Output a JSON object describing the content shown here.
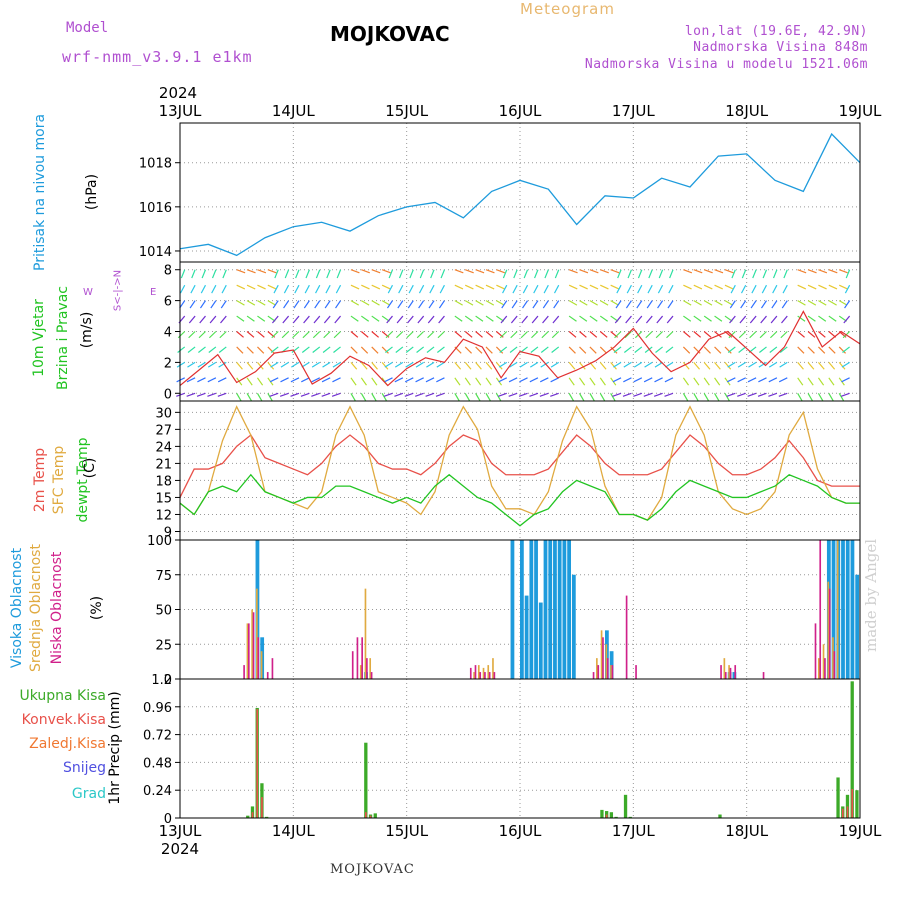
{
  "header": {
    "meteogram_label": "Meteogram",
    "title": "MOJKOVAC",
    "model_label": "Model",
    "model_name": "wrf-nmm_v3.9.1  e1km",
    "lonlat": "lon,lat (19.6E, 42.9N)",
    "altitude": "Nadmorska Visina 848m",
    "model_altitude": "Nadmorska Visina u modelu 1521.06m",
    "bottom_label": "MOJKOVAC",
    "watermark": "made by Angel"
  },
  "time_axis": {
    "year": "2024",
    "days": [
      "13JUL",
      "14JUL",
      "15JUL",
      "16JUL",
      "17JUL",
      "18JUL",
      "19JUL"
    ]
  },
  "panel_labels": {
    "pressure": {
      "name": "Pritisak na nivou mora",
      "unit": "(hPa)"
    },
    "wind": {
      "name1": "10m Vjetar",
      "name2": "Brzina i Pravac",
      "unit": "(m/s)",
      "compass_ns": "S<-|->N",
      "compass_w": "W",
      "compass_e": "E"
    },
    "temp": {
      "name1": "2m Temp",
      "name2": "SFC Temp",
      "name3": "dewpt Temp",
      "unit": "(C)"
    },
    "cloud": {
      "high": "Visoka Oblacnost",
      "mid": "Srednja Oblacnost",
      "low": "Niska Oblacnost",
      "unit": "(%)"
    },
    "precip": {
      "total": "Ukupna Kisa",
      "conv": "Konvek.Kisa",
      "frozen": "Zaledj.Kisa",
      "snow": "Snijeg",
      "graupel": "Grad",
      "unit": "1hr Precip (mm)"
    }
  },
  "colors": {
    "pressure": "#1e9bdc",
    "temp2m": "#e8514a",
    "sfc_temp": "#e0aa40",
    "dewpoint": "#22c422",
    "cloud_high": "#1e9bdc",
    "cloud_mid": "#e0aa40",
    "cloud_low": "#d0208a",
    "precip_total": "#3caa28",
    "precip_conv": "#e8514a",
    "precip_frozen": "#f07832",
    "precip_snow": "#5050e0",
    "precip_graupel": "#2cc8c8"
  },
  "chart_data": [
    {
      "type": "line",
      "panel": "pressure",
      "ylabel": "(hPa)",
      "ylim": [
        1013.5,
        1019.8
      ],
      "yticks": [
        1014,
        1016,
        1018
      ],
      "x_unit": "hours since 13JUL 00",
      "series": [
        {
          "x": [
            0,
            6,
            12,
            18,
            24,
            30,
            36,
            42,
            48,
            54,
            60,
            66,
            72,
            78,
            84,
            90,
            96,
            102,
            108,
            114,
            120,
            126,
            132,
            138,
            144
          ],
          "y": [
            1014.1,
            1014.3,
            1013.8,
            1014.6,
            1015.1,
            1015.3,
            1014.9,
            1015.6,
            1016.0,
            1016.2,
            1015.5,
            1016.7,
            1017.2,
            1016.8,
            1015.2,
            1016.5,
            1016.4,
            1017.3,
            1016.9,
            1018.3,
            1018.4,
            1017.2,
            1016.7,
            1019.3,
            1018.0
          ]
        }
      ]
    },
    {
      "type": "line",
      "panel": "wind",
      "ylabel": "(m/s)",
      "ylim": [
        -0.5,
        8.5
      ],
      "yticks": [
        0,
        2,
        4,
        6,
        8
      ],
      "x_unit": "hours since 13JUL 00",
      "series": [
        {
          "x": [
            0,
            4,
            8,
            12,
            16,
            20,
            24,
            28,
            32,
            36,
            40,
            44,
            48,
            52,
            56,
            60,
            64,
            68,
            72,
            76,
            80,
            84,
            88,
            92,
            96,
            100,
            104,
            108,
            112,
            116,
            120,
            124,
            128,
            132,
            136,
            140,
            144
          ],
          "y": [
            0.5,
            1.5,
            2.5,
            0.7,
            1.4,
            2.6,
            2.8,
            0.6,
            1.3,
            2.4,
            1.8,
            0.5,
            1.6,
            2.3,
            2.0,
            3.5,
            3.0,
            1.0,
            2.7,
            2.4,
            1.0,
            1.5,
            2.1,
            3.0,
            4.2,
            2.6,
            1.4,
            2.0,
            3.5,
            4.0,
            2.9,
            1.8,
            3.0,
            5.3,
            3.0,
            4.0,
            3.2
          ]
        }
      ]
    },
    {
      "type": "line",
      "panel": "temperature",
      "ylabel": "(C)",
      "ylim": [
        7.5,
        32
      ],
      "yticks": [
        9,
        12,
        15,
        18,
        21,
        24,
        27,
        30
      ],
      "x_unit": "hours since 13JUL 00",
      "series": [
        {
          "name": "2m Temp",
          "x": [
            0,
            3,
            6,
            9,
            12,
            15,
            18,
            21,
            24,
            27,
            30,
            33,
            36,
            39,
            42,
            45,
            48,
            51,
            54,
            57,
            60,
            63,
            66,
            69,
            72,
            75,
            78,
            81,
            84,
            87,
            90,
            93,
            96,
            99,
            102,
            105,
            108,
            111,
            114,
            117,
            120,
            123,
            126,
            129,
            132,
            135,
            138,
            141,
            144
          ],
          "y": [
            15,
            20,
            20,
            21,
            24,
            26,
            22,
            21,
            20,
            19,
            21,
            24,
            26,
            24,
            21,
            20,
            20,
            19,
            21,
            24,
            26,
            25,
            21,
            19,
            19,
            19,
            20,
            23,
            26,
            24,
            21,
            19,
            19,
            19,
            20,
            23,
            26,
            24,
            21,
            19,
            19,
            20,
            22,
            25,
            22,
            18,
            17,
            17,
            17
          ]
        },
        {
          "name": "SFC Temp",
          "x": [
            0,
            3,
            6,
            9,
            12,
            15,
            18,
            21,
            24,
            27,
            30,
            33,
            36,
            39,
            42,
            45,
            48,
            51,
            54,
            57,
            60,
            63,
            66,
            69,
            72,
            75,
            78,
            81,
            84,
            87,
            90,
            93,
            96,
            99,
            102,
            105,
            108,
            111,
            114,
            117,
            120,
            123,
            126,
            129,
            132,
            135,
            138,
            141,
            144
          ],
          "y": [
            14,
            12,
            16,
            25,
            31,
            26,
            16,
            15,
            14,
            13,
            16,
            26,
            31,
            26,
            16,
            15,
            14,
            12,
            16,
            26,
            31,
            27,
            17,
            13,
            13,
            12,
            16,
            25,
            31,
            27,
            17,
            12,
            12,
            11,
            15,
            26,
            31,
            26,
            16,
            13,
            12,
            13,
            16,
            26,
            30,
            20,
            15,
            14,
            14
          ]
        },
        {
          "name": "dewpt Temp",
          "x": [
            0,
            3,
            6,
            9,
            12,
            15,
            18,
            21,
            24,
            27,
            30,
            33,
            36,
            39,
            42,
            45,
            48,
            51,
            54,
            57,
            60,
            63,
            66,
            69,
            72,
            75,
            78,
            81,
            84,
            87,
            90,
            93,
            96,
            99,
            102,
            105,
            108,
            111,
            114,
            117,
            120,
            123,
            126,
            129,
            132,
            135,
            138,
            141,
            144
          ],
          "y": [
            14,
            12,
            16,
            17,
            16,
            19,
            16,
            15,
            14,
            15,
            15,
            17,
            17,
            16,
            15,
            14,
            15,
            14,
            17,
            19,
            17,
            15,
            14,
            12,
            10,
            12,
            13,
            16,
            18,
            17,
            16,
            12,
            12,
            11,
            13,
            16,
            18,
            17,
            16,
            15,
            15,
            16,
            17,
            19,
            18,
            17,
            15,
            14,
            14
          ]
        }
      ]
    },
    {
      "type": "bar",
      "panel": "cloud",
      "ylabel": "(%)",
      "ylim": [
        0,
        100
      ],
      "yticks": [
        0,
        25,
        50,
        75,
        100
      ],
      "x_unit": "hours since 13JUL 00",
      "series": [
        {
          "name": "Visoka Oblacnost",
          "x": [
            16,
            17,
            39,
            70,
            72,
            73,
            74,
            75,
            76,
            77,
            78,
            79,
            80,
            81,
            82,
            83,
            90,
            91,
            116,
            117,
            137,
            138,
            139,
            140,
            141,
            142,
            143
          ],
          "values": [
            100,
            30,
            5,
            100,
            100,
            60,
            100,
            100,
            55,
            100,
            100,
            100,
            100,
            100,
            100,
            75,
            35,
            20,
            5,
            5,
            100,
            100,
            100,
            100,
            100,
            100,
            75
          ]
        },
        {
          "name": "Srednja Oblacnost",
          "x": [
            14,
            15,
            16,
            17,
            38,
            39,
            40,
            62,
            63,
            64,
            65,
            66,
            88,
            89,
            90,
            91,
            115,
            116,
            135,
            136,
            137,
            138,
            139
          ],
          "values": [
            40,
            50,
            65,
            20,
            10,
            65,
            15,
            5,
            10,
            8,
            10,
            15,
            15,
            35,
            25,
            10,
            15,
            10,
            15,
            25,
            70,
            30,
            100
          ]
        },
        {
          "name": "Niska Oblacnost",
          "x": [
            13,
            14,
            15,
            16,
            18,
            19,
            36,
            37,
            38,
            39,
            40,
            61,
            62,
            63,
            64,
            65,
            66,
            87,
            88,
            89,
            90,
            91,
            94,
            96,
            114,
            115,
            116,
            117,
            123,
            134,
            135,
            136,
            137,
            138
          ],
          "values": [
            10,
            40,
            48,
            30,
            5,
            15,
            20,
            30,
            30,
            15,
            5,
            8,
            10,
            5,
            5,
            5,
            5,
            5,
            10,
            30,
            15,
            10,
            60,
            10,
            10,
            5,
            8,
            10,
            5,
            40,
            100,
            15,
            65,
            20
          ]
        }
      ]
    },
    {
      "type": "bar",
      "panel": "precip",
      "ylabel": "1hr Precip (mm)",
      "ylim": [
        0,
        1.2
      ],
      "yticks": [
        0,
        0.24,
        0.48,
        0.72,
        0.96,
        1.2
      ],
      "x_unit": "hours since 13JUL 00",
      "series": [
        {
          "name": "Ukupna Kisa",
          "x": [
            14,
            15,
            16,
            17,
            18,
            39,
            40,
            41,
            89,
            90,
            91,
            92,
            94,
            95,
            114,
            139,
            140,
            141,
            142,
            143
          ],
          "values": [
            0.02,
            0.1,
            0.95,
            0.3,
            0.01,
            0.65,
            0.03,
            0.04,
            0.07,
            0.06,
            0.05,
            0.01,
            0.2,
            0.01,
            0.03,
            0.35,
            0.1,
            0.2,
            1.18,
            0.24
          ]
        },
        {
          "name": "Konvek.Kisa",
          "x": [
            15,
            16,
            17,
            39,
            40,
            90,
            140,
            141,
            142
          ],
          "values": [
            0.05,
            0.94,
            0.18,
            0.05,
            0.02,
            0.03,
            0.08,
            0.1,
            0.25
          ]
        }
      ]
    }
  ]
}
